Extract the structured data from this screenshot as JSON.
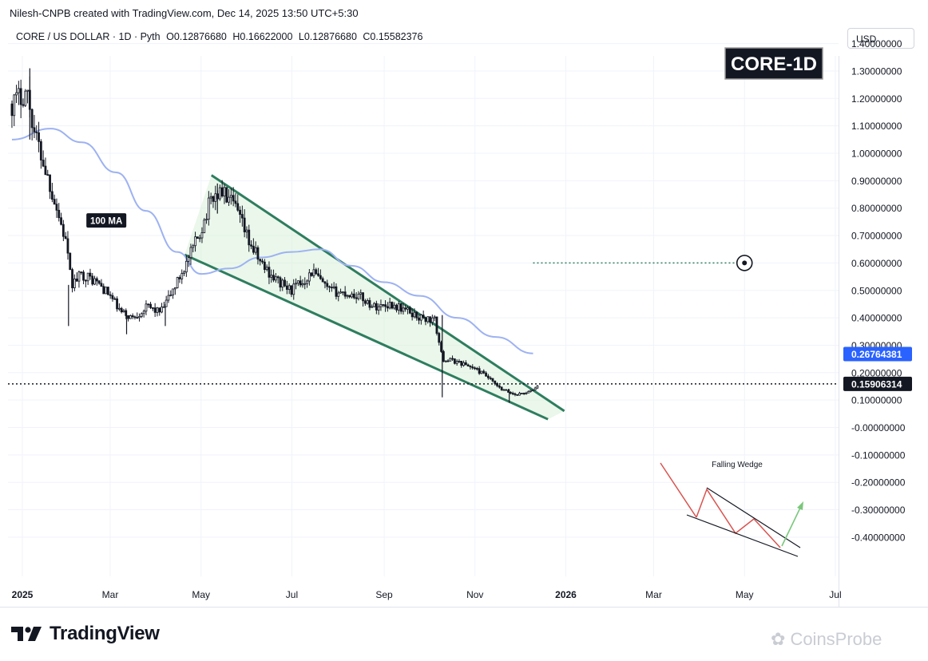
{
  "header": {
    "attribution": "Nilesh-CNPB created with TradingView.com, Dec 14, 2025 13:50 UTC+5:30"
  },
  "symbol": {
    "name": "CORE / US DOLLAR · 1D · Pyth",
    "open": "O0.12876680",
    "high": "H0.16622000",
    "low": "L0.12876680",
    "close": "C0.15582376"
  },
  "currency_label": "USD",
  "footer": {
    "brand": "TradingView",
    "watermark": "CoinsProbe"
  },
  "colors": {
    "candles": "#131722",
    "ma": "#9db2f2",
    "wedge": "#2e7d5f",
    "wedge_fill": "#d9f0d9",
    "target": "#2e7d5f",
    "ma_label_bg": "#131722",
    "price_tag": "#131722",
    "ma_tag": "#2962ff"
  },
  "chart_data": {
    "type": "candlestick",
    "title": "CORE-1D",
    "y_axis": {
      "ticks": [
        "1.40000000",
        "1.30000000",
        "1.20000000",
        "1.10000000",
        "1.00000000",
        "0.90000000",
        "0.80000000",
        "0.70000000",
        "0.60000000",
        "0.50000000",
        "0.40000000",
        "0.30000000",
        "0.20000000",
        "0.10000000",
        "-0.00000000",
        "-0.10000000",
        "-0.20000000",
        "-0.30000000",
        "-0.40000000"
      ],
      "range": [
        -0.44,
        1.47
      ]
    },
    "x_axis": {
      "ticks": [
        {
          "label": "2025",
          "date": "2025-01-01"
        },
        {
          "label": "Mar",
          "date": "2025-03-01"
        },
        {
          "label": "May",
          "date": "2025-05-01"
        },
        {
          "label": "Jul",
          "date": "2025-07-01"
        },
        {
          "label": "Sep",
          "date": "2025-09-01"
        },
        {
          "label": "Nov",
          "date": "2025-11-01"
        },
        {
          "label": "2026",
          "date": "2026-01-01"
        },
        {
          "label": "Mar",
          "date": "2026-03-01"
        },
        {
          "label": "May",
          "date": "2026-05-01"
        },
        {
          "label": "Jul",
          "date": "2026-07-01"
        }
      ]
    },
    "price_path": [
      {
        "date": "2024-12-25",
        "price": 1.18
      },
      {
        "date": "2025-01-04",
        "price": 1.23
      },
      {
        "date": "2025-01-09",
        "price": 1.08
      },
      {
        "date": "2025-01-16",
        "price": 0.95
      },
      {
        "date": "2025-01-23",
        "price": 0.82
      },
      {
        "date": "2025-01-30",
        "price": 0.68
      },
      {
        "date": "2025-02-03",
        "price": 0.52
      },
      {
        "date": "2025-02-10",
        "price": 0.56
      },
      {
        "date": "2025-02-20",
        "price": 0.53
      },
      {
        "date": "2025-03-01",
        "price": 0.48
      },
      {
        "date": "2025-03-08",
        "price": 0.42
      },
      {
        "date": "2025-03-16",
        "price": 0.4
      },
      {
        "date": "2025-03-26",
        "price": 0.44
      },
      {
        "date": "2025-04-04",
        "price": 0.42
      },
      {
        "date": "2025-04-14",
        "price": 0.52
      },
      {
        "date": "2025-04-23",
        "price": 0.62
      },
      {
        "date": "2025-05-01",
        "price": 0.72
      },
      {
        "date": "2025-05-08",
        "price": 0.84
      },
      {
        "date": "2025-05-15",
        "price": 0.86
      },
      {
        "date": "2025-05-24",
        "price": 0.8
      },
      {
        "date": "2025-06-02",
        "price": 0.68
      },
      {
        "date": "2025-06-10",
        "price": 0.6
      },
      {
        "date": "2025-06-20",
        "price": 0.54
      },
      {
        "date": "2025-06-30",
        "price": 0.5
      },
      {
        "date": "2025-07-08",
        "price": 0.53
      },
      {
        "date": "2025-07-15",
        "price": 0.57
      },
      {
        "date": "2025-07-25",
        "price": 0.5
      },
      {
        "date": "2025-08-05",
        "price": 0.49
      },
      {
        "date": "2025-08-15",
        "price": 0.48
      },
      {
        "date": "2025-08-25",
        "price": 0.44
      },
      {
        "date": "2025-09-05",
        "price": 0.45
      },
      {
        "date": "2025-09-15",
        "price": 0.43
      },
      {
        "date": "2025-09-25",
        "price": 0.4
      },
      {
        "date": "2025-10-05",
        "price": 0.39
      },
      {
        "date": "2025-10-10",
        "price": 0.25
      },
      {
        "date": "2025-10-20",
        "price": 0.24
      },
      {
        "date": "2025-10-30",
        "price": 0.22
      },
      {
        "date": "2025-11-08",
        "price": 0.19
      },
      {
        "date": "2025-11-18",
        "price": 0.14
      },
      {
        "date": "2025-11-28",
        "price": 0.12
      },
      {
        "date": "2025-12-08",
        "price": 0.13
      },
      {
        "date": "2025-12-14",
        "price": 0.156
      }
    ],
    "spikes": [
      {
        "date": "2025-01-06",
        "high": 1.31,
        "low": 1.05
      },
      {
        "date": "2025-02-01",
        "high": 0.52,
        "low": 0.37
      },
      {
        "date": "2025-03-12",
        "high": 0.41,
        "low": 0.34
      },
      {
        "date": "2025-04-07",
        "high": 0.45,
        "low": 0.37
      },
      {
        "date": "2025-05-12",
        "high": 0.89,
        "low": 0.78
      },
      {
        "date": "2025-10-10",
        "high": 0.41,
        "low": 0.11
      },
      {
        "date": "2025-11-24",
        "high": 0.14,
        "low": 0.09
      }
    ],
    "ma_series": {
      "name": "100 MA",
      "points": [
        {
          "date": "2024-12-25",
          "value": 1.05
        },
        {
          "date": "2025-01-20",
          "value": 1.09
        },
        {
          "date": "2025-02-10",
          "value": 1.04
        },
        {
          "date": "2025-03-05",
          "value": 0.93
        },
        {
          "date": "2025-03-25",
          "value": 0.79
        },
        {
          "date": "2025-04-15",
          "value": 0.64
        },
        {
          "date": "2025-05-01",
          "value": 0.56
        },
        {
          "date": "2025-05-20",
          "value": 0.58
        },
        {
          "date": "2025-06-10",
          "value": 0.62
        },
        {
          "date": "2025-07-01",
          "value": 0.64
        },
        {
          "date": "2025-07-20",
          "value": 0.65
        },
        {
          "date": "2025-08-10",
          "value": 0.59
        },
        {
          "date": "2025-09-01",
          "value": 0.53
        },
        {
          "date": "2025-09-25",
          "value": 0.48
        },
        {
          "date": "2025-10-20",
          "value": 0.4
        },
        {
          "date": "2025-11-15",
          "value": 0.33
        },
        {
          "date": "2025-12-10",
          "value": 0.27
        }
      ]
    },
    "wedge": {
      "upper": [
        {
          "date": "2025-05-08",
          "value": 0.92
        },
        {
          "date": "2025-12-31",
          "value": 0.06
        }
      ],
      "lower": [
        {
          "date": "2025-04-20",
          "value": 0.63
        },
        {
          "date": "2025-12-20",
          "value": 0.03
        }
      ]
    },
    "target": {
      "price": 0.6,
      "from_date": "2025-12-10",
      "to_date": "2026-05-01"
    },
    "current_price": {
      "value": 0.159,
      "label": "0.15906314"
    },
    "ma_price": {
      "value": 0.268,
      "label": "0.26764381"
    },
    "annotations": {
      "ma_label": "100 MA",
      "inset_title": "Falling Wedge"
    }
  }
}
